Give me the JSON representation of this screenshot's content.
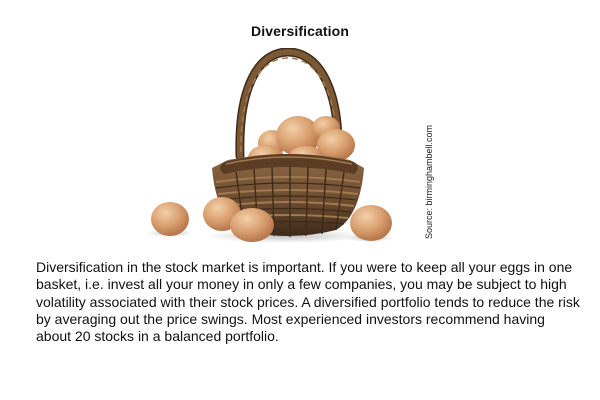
{
  "title": "Diversification",
  "source": "Source: birminghambell.com",
  "body": "Diversification in the stock market is important. If you were to keep all your eggs in one basket, i.e. invest all your money in only a few companies, you may be subject to high volatility associated with their stock prices. A diversified portfolio tends to reduce the risk by averaging out the price swings. Most experienced investors recommend having about 20 stocks in a balanced portfolio.",
  "illustration": {
    "icon": "egg-basket-icon",
    "colors": {
      "egg": "#d9a070",
      "egg_shadow": "#b47448",
      "egg_highlight": "#f3cfa8",
      "basket": "#6b4a2e",
      "basket_dark": "#3d2a1a",
      "basket_light": "#8f6a45"
    }
  }
}
